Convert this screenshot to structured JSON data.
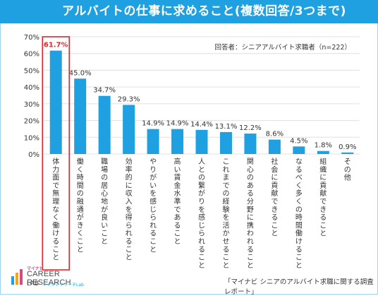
{
  "title": "アルバイトの仕事に求めること(複数回答/3つまで)",
  "respondents_note": "回答者：シニアアルバイト求職者（n=222）",
  "source": "「マイナビ シニアのアルバイト求職に関する調査レポート」",
  "logo": {
    "top": "マイナビ",
    "main": "CAREER RESEARCH",
    "lab": "LAB",
    "sub": "キャリアリサーチLab"
  },
  "colors": {
    "bar": "#1ea0e1",
    "highlight_box": "#e3262b",
    "highlight_text": "#e3262b",
    "grid": "#e0e0e0",
    "title_bg": "#1ea0e1"
  },
  "chart_data": {
    "type": "bar",
    "title": "アルバイトの仕事に求めること(複数回答/3つまで)",
    "xlabel": "",
    "ylabel": "",
    "ylim": [
      0,
      70
    ],
    "yticks": [
      0,
      10,
      20,
      30,
      40,
      50,
      60,
      70
    ],
    "ytick_labels": [
      "0%",
      "10%",
      "20%",
      "30%",
      "40%",
      "50%",
      "60%",
      "70%"
    ],
    "grid": true,
    "categories": [
      "体力面で無理なく働けること",
      "働く時間の融通がきくこと",
      "職場の居心地が良いこと",
      "効率的に収入を得られること",
      "やりがいを感じられること",
      "高い賃金水準であること",
      "人との繋がりを感じられること",
      "これまでの経験を活かせること",
      "関心のある分野に携われること",
      "社会に貢献できること",
      "なるべく多くの時間働けること",
      "組織に貢献できること",
      "その他"
    ],
    "values": [
      61.7,
      45.0,
      34.7,
      29.3,
      14.9,
      14.9,
      14.4,
      13.1,
      12.2,
      8.6,
      4.5,
      1.8,
      0.9
    ],
    "value_labels": [
      "61.7%",
      "45.0%",
      "34.7%",
      "29.3%",
      "14.9%",
      "14.9%",
      "14.4%",
      "13.1%",
      "12.2%",
      "8.6%",
      "4.5%",
      "1.8%",
      "0.9%"
    ],
    "highlight_index": 0
  }
}
